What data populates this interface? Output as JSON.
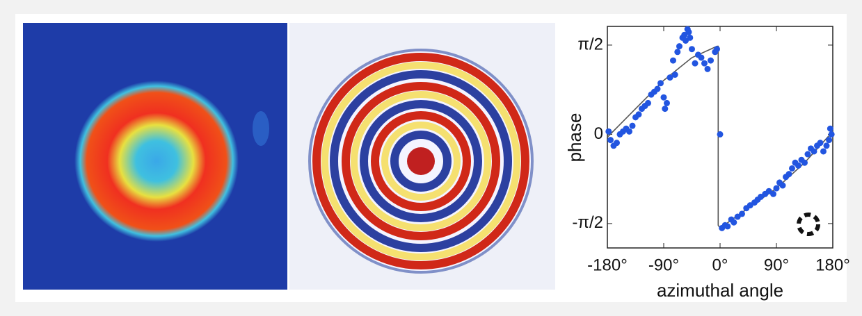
{
  "chart_data": {
    "type": "scatter",
    "x_label": "azimuthal angle",
    "y_label": "phase",
    "xlim": [
      -180,
      180
    ],
    "ylim": [
      -2.0,
      1.9
    ],
    "xticks": [
      {
        "value": -180,
        "label": "-180°"
      },
      {
        "value": -90,
        "label": "-90°"
      },
      {
        "value": 0,
        "label": "0°"
      },
      {
        "value": 90,
        "label": "90°"
      },
      {
        "value": 180,
        "label": "180°"
      }
    ],
    "yticks": [
      {
        "value": -1.5708,
        "label": "-π/2"
      },
      0,
      {
        "value": 1.5708,
        "label": "π/2"
      }
    ],
    "color": "#2255e0",
    "line_color": "#555555",
    "x": [
      -178,
      -175,
      -170,
      -165,
      -160,
      -155,
      -150,
      -145,
      -140,
      -135,
      -130,
      -125,
      -120,
      -115,
      -110,
      -105,
      -100,
      -95,
      -90,
      -88,
      -85,
      -80,
      -75,
      -72,
      -68,
      -65,
      -60,
      -57,
      -55,
      -52,
      -50,
      -48,
      -45,
      -40,
      -35,
      -30,
      -25,
      -20,
      -15,
      -8,
      -5,
      0,
      3,
      8,
      12,
      18,
      22,
      28,
      35,
      42,
      48,
      55,
      60,
      65,
      72,
      78,
      85,
      90,
      95,
      100,
      105,
      110,
      115,
      120,
      125,
      130,
      135,
      140,
      145,
      150,
      155,
      160,
      165,
      170,
      174,
      176,
      178
    ],
    "values": [
      0.05,
      -0.1,
      -0.2,
      -0.15,
      0.0,
      0.05,
      0.1,
      0.05,
      0.15,
      0.3,
      0.35,
      0.45,
      0.5,
      0.55,
      0.7,
      0.75,
      0.8,
      0.9,
      0.65,
      0.45,
      0.55,
      1.0,
      1.3,
      1.05,
      1.45,
      1.55,
      1.7,
      1.75,
      1.65,
      1.85,
      1.8,
      1.7,
      1.5,
      1.25,
      1.4,
      1.35,
      1.25,
      1.15,
      1.3,
      1.45,
      1.5,
      0.0,
      -1.65,
      -1.6,
      -1.62,
      -1.5,
      -1.55,
      -1.45,
      -1.4,
      -1.3,
      -1.25,
      -1.2,
      -1.15,
      -1.1,
      -1.05,
      -1.0,
      -1.05,
      -0.95,
      -0.85,
      -0.9,
      -0.75,
      -0.7,
      -0.6,
      -0.5,
      -0.55,
      -0.45,
      -0.5,
      -0.35,
      -0.25,
      -0.3,
      -0.2,
      -0.15,
      -0.3,
      -0.2,
      -0.1,
      0.1,
      0.0
    ],
    "fit": {
      "x": [
        -180,
        -135,
        -90,
        -45,
        -5,
        -3,
        -3,
        0,
        45,
        90,
        135,
        180
      ],
      "values": [
        -0.05,
        0.45,
        0.95,
        1.35,
        1.55,
        1.55,
        -1.6,
        -1.65,
        -1.3,
        -0.95,
        -0.5,
        0.05
      ]
    }
  }
}
